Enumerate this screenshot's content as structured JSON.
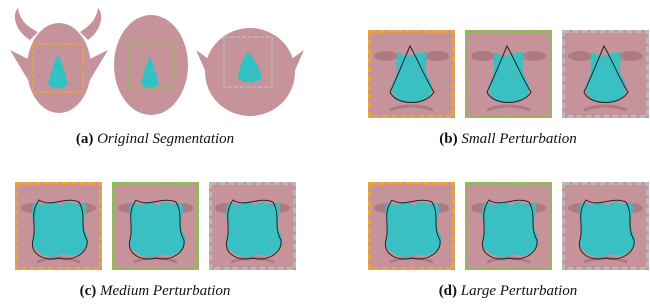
{
  "panels": [
    {
      "label": "(a)",
      "caption": "Original Segmentation"
    },
    {
      "label": "(b)",
      "caption": "Small Perturbation"
    },
    {
      "label": "(c)",
      "caption": "Medium Perturbation"
    },
    {
      "label": "(d)",
      "caption": "Large Perturbation"
    }
  ]
}
